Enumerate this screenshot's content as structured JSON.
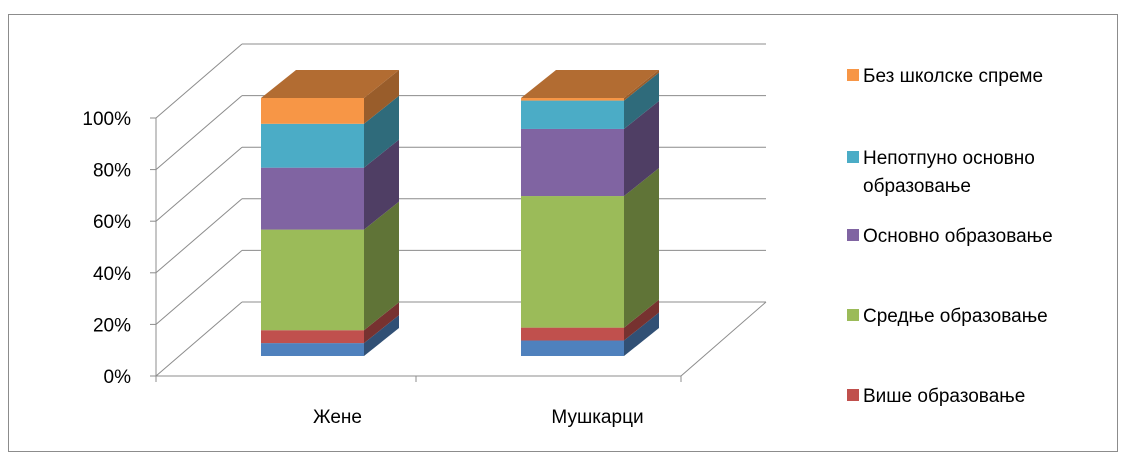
{
  "chart_data": {
    "type": "bar",
    "stacked": true,
    "three_d": true,
    "percent_stacked": true,
    "categories": [
      "Жене",
      "Мушкарци"
    ],
    "y_ticks": [
      "0%",
      "20%",
      "40%",
      "60%",
      "80%",
      "100%"
    ],
    "ylim": [
      0,
      100
    ],
    "grid": true,
    "legend_position": "right",
    "series": [
      {
        "name": "Више образовање",
        "color": "#4f81bd",
        "values": [
          5,
          6
        ]
      },
      {
        "name": "Више образовање",
        "color": "#c0504d",
        "values": [
          5,
          5
        ]
      },
      {
        "name": "Средње образовање",
        "color": "#9bbb59",
        "values": [
          39,
          51
        ]
      },
      {
        "name": "Основно образовање",
        "color": "#8064a2",
        "values": [
          24,
          26
        ]
      },
      {
        "name": "Непотпуно основно образовање",
        "color": "#4bacc6",
        "values": [
          17,
          11
        ]
      },
      {
        "name": "Без школске спреме",
        "color": "#f79646",
        "values": [
          10,
          1
        ]
      }
    ]
  }
}
